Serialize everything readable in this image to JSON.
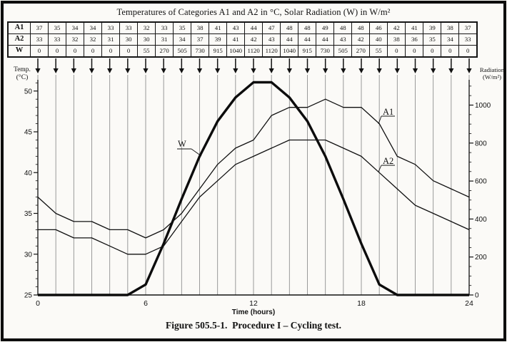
{
  "title": "Temperatures of Categories A1 and A2 in °C, Solar Radiation (W) in W/m²",
  "caption": "Figure 505.5-1.  Procedure I – Cycling test.",
  "table": {
    "rows": [
      {
        "label": "A1",
        "values": [
          37,
          35,
          34,
          34,
          33,
          33,
          32,
          33,
          35,
          38,
          41,
          43,
          44,
          47,
          48,
          48,
          49,
          48,
          48,
          46,
          42,
          41,
          39,
          38,
          37
        ]
      },
      {
        "label": "A2",
        "values": [
          33,
          33,
          32,
          32,
          31,
          30,
          30,
          31,
          34,
          37,
          39,
          41,
          42,
          43,
          44,
          44,
          44,
          43,
          42,
          40,
          38,
          36,
          35,
          34,
          33
        ]
      },
      {
        "label": "W",
        "values": [
          0,
          0,
          0,
          0,
          0,
          0,
          55,
          270,
          505,
          730,
          915,
          1040,
          1120,
          1120,
          1040,
          915,
          730,
          505,
          270,
          55,
          0,
          0,
          0,
          0,
          0
        ]
      }
    ]
  },
  "chart_data": {
    "type": "line",
    "x": [
      0,
      1,
      2,
      3,
      4,
      5,
      6,
      7,
      8,
      9,
      10,
      11,
      12,
      13,
      14,
      15,
      16,
      17,
      18,
      19,
      20,
      21,
      22,
      23,
      24
    ],
    "series": [
      {
        "name": "W",
        "axis": "radiation",
        "values": [
          0,
          0,
          0,
          0,
          0,
          0,
          55,
          270,
          505,
          730,
          915,
          1040,
          1120,
          1120,
          1040,
          915,
          730,
          505,
          270,
          55,
          0,
          0,
          0,
          0,
          0
        ]
      },
      {
        "name": "A1",
        "axis": "temperature",
        "values": [
          37,
          35,
          34,
          34,
          33,
          33,
          32,
          33,
          35,
          38,
          41,
          43,
          44,
          47,
          48,
          48,
          49,
          48,
          48,
          46,
          42,
          41,
          39,
          38,
          37
        ]
      },
      {
        "name": "A2",
        "axis": "temperature",
        "values": [
          33,
          33,
          32,
          32,
          31,
          30,
          30,
          31,
          34,
          37,
          39,
          41,
          42,
          43,
          44,
          44,
          44,
          43,
          42,
          40,
          38,
          36,
          35,
          34,
          33
        ]
      }
    ],
    "left_axis": {
      "title": [
        "Temp.",
        "(°C)"
      ],
      "ticks": [
        25,
        30,
        35,
        40,
        45,
        50
      ],
      "minor_step": 1,
      "range": [
        25,
        51
      ]
    },
    "right_axis": {
      "title": [
        "Radiation",
        "(W/m²)"
      ],
      "ticks": [
        0,
        200,
        400,
        600,
        800,
        1000
      ],
      "minor_step": 50,
      "range": [
        0,
        1120
      ]
    },
    "x_axis": {
      "title": "Time (hours)",
      "ticks": [
        0,
        6,
        12,
        18,
        24
      ],
      "range": [
        0,
        24
      ]
    },
    "grid": {
      "vertical_per_hour": true,
      "horizontal": false
    },
    "curve_labels": [
      "W",
      "A1",
      "A2"
    ],
    "legend_position": "inline-labels"
  },
  "colors": {
    "ink": "#111111",
    "grid": "#8f8f8f",
    "paper": "#fbfaf7"
  }
}
